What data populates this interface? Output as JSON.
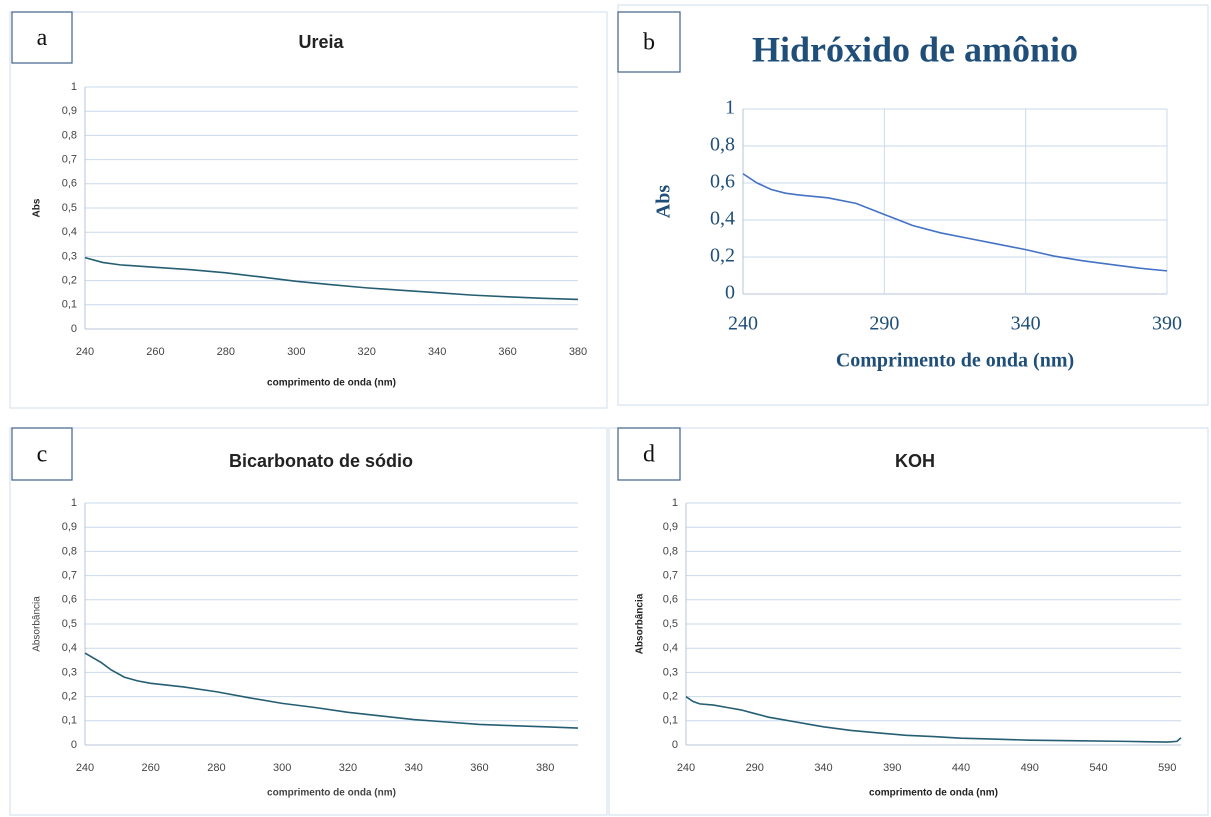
{
  "chart_data": [
    {
      "type": "line",
      "panel_label": "a",
      "title": "Ureia",
      "x_label": "comprimento de onda (nm)",
      "y_label": "Abs",
      "x": [
        240,
        245,
        250,
        260,
        270,
        280,
        290,
        300,
        310,
        320,
        330,
        340,
        350,
        360,
        370,
        380
      ],
      "values": [
        0.295,
        0.275,
        0.265,
        0.255,
        0.245,
        0.232,
        0.215,
        0.197,
        0.183,
        0.17,
        0.16,
        0.15,
        0.14,
        0.133,
        0.127,
        0.122
      ],
      "color": "#255e73",
      "xlim": [
        240,
        380
      ],
      "ylim": [
        0,
        1
      ],
      "xticks": [
        240,
        260,
        280,
        300,
        320,
        340,
        360,
        380
      ],
      "yticks": [
        0,
        {
          "value": 0.1,
          "label": "0,1"
        },
        {
          "value": 0.2,
          "label": "0,2"
        },
        {
          "value": 0.3,
          "label": "0,3"
        },
        {
          "value": 0.4,
          "label": "0,4"
        },
        {
          "value": 0.5,
          "label": "0,5"
        },
        {
          "value": 0.6,
          "label": "0,6"
        },
        {
          "value": 0.7,
          "label": "0,7"
        },
        {
          "value": 0.8,
          "label": "0,8"
        },
        {
          "value": 0.9,
          "label": "0,9"
        },
        1
      ],
      "grid": true,
      "grid_x": false
    },
    {
      "type": "line",
      "panel_label": "b",
      "title": "Hidróxido de amônio",
      "x_label": "Comprimento de onda (nm)",
      "y_label": "Abs",
      "x": [
        240,
        245,
        250,
        255,
        260,
        270,
        280,
        290,
        300,
        310,
        320,
        330,
        340,
        350,
        360,
        370,
        380,
        390
      ],
      "values": [
        0.65,
        0.6,
        0.565,
        0.545,
        0.535,
        0.52,
        0.49,
        0.43,
        0.37,
        0.33,
        0.3,
        0.27,
        0.24,
        0.205,
        0.18,
        0.16,
        0.14,
        0.125
      ],
      "color": "#4472c4",
      "xlim": [
        240,
        390
      ],
      "ylim": [
        0,
        1
      ],
      "xticks": [
        240,
        290,
        340,
        390
      ],
      "yticks": [
        0,
        {
          "value": 0.2,
          "label": "0,2"
        },
        {
          "value": 0.4,
          "label": "0,4"
        },
        {
          "value": 0.6,
          "label": "0,6"
        },
        {
          "value": 0.8,
          "label": "0,8"
        },
        1
      ],
      "grid": true,
      "grid_x": true
    },
    {
      "type": "line",
      "panel_label": "c",
      "title": "Bicarbonato de sódio",
      "x_label": "comprimento de onda (nm)",
      "y_label": "Absorbância",
      "x": [
        240,
        245,
        248,
        252,
        256,
        260,
        270,
        280,
        290,
        300,
        310,
        320,
        330,
        340,
        350,
        360,
        370,
        380,
        390
      ],
      "values": [
        0.38,
        0.34,
        0.31,
        0.28,
        0.265,
        0.255,
        0.24,
        0.22,
        0.195,
        0.172,
        0.155,
        0.135,
        0.12,
        0.105,
        0.095,
        0.085,
        0.08,
        0.075,
        0.07
      ],
      "color": "#255e73",
      "xlim": [
        240,
        390
      ],
      "ylim": [
        0,
        1
      ],
      "xticks": [
        240,
        260,
        280,
        300,
        320,
        340,
        360,
        380
      ],
      "yticks": [
        0,
        {
          "value": 0.1,
          "label": "0,1"
        },
        {
          "value": 0.2,
          "label": "0,2"
        },
        {
          "value": 0.3,
          "label": "0,3"
        },
        {
          "value": 0.4,
          "label": "0,4"
        },
        {
          "value": 0.5,
          "label": "0,5"
        },
        {
          "value": 0.6,
          "label": "0,6"
        },
        {
          "value": 0.7,
          "label": "0,7"
        },
        {
          "value": 0.8,
          "label": "0,8"
        },
        {
          "value": 0.9,
          "label": "0,9"
        },
        1
      ],
      "grid": true,
      "grid_x": false
    },
    {
      "type": "line",
      "panel_label": "d",
      "title": "KOH",
      "x_label": "comprimento de onda (nm)",
      "y_label": "Absorbância",
      "x": [
        240,
        245,
        250,
        260,
        270,
        280,
        290,
        300,
        310,
        320,
        330,
        340,
        360,
        380,
        400,
        420,
        440,
        460,
        490,
        520,
        560,
        590,
        597,
        600
      ],
      "values": [
        0.2,
        0.18,
        0.17,
        0.165,
        0.155,
        0.145,
        0.13,
        0.115,
        0.105,
        0.095,
        0.085,
        0.075,
        0.06,
        0.05,
        0.04,
        0.035,
        0.028,
        0.025,
        0.02,
        0.018,
        0.015,
        0.012,
        0.015,
        0.03
      ],
      "color": "#255e73",
      "xlim": [
        240,
        600
      ],
      "ylim": [
        0,
        1
      ],
      "xticks": [
        240,
        290,
        340,
        390,
        440,
        490,
        540,
        590
      ],
      "yticks": [
        0,
        {
          "value": 0.1,
          "label": "0,1"
        },
        {
          "value": 0.2,
          "label": "0,2"
        },
        {
          "value": 0.3,
          "label": "0,3"
        },
        {
          "value": 0.4,
          "label": "0,4"
        },
        {
          "value": 0.5,
          "label": "0,5"
        },
        {
          "value": 0.6,
          "label": "0,6"
        },
        {
          "value": 0.7,
          "label": "0,7"
        },
        {
          "value": 0.8,
          "label": "0,8"
        },
        {
          "value": 0.9,
          "label": "0,9"
        },
        1
      ],
      "grid": true,
      "grid_x": false
    }
  ]
}
